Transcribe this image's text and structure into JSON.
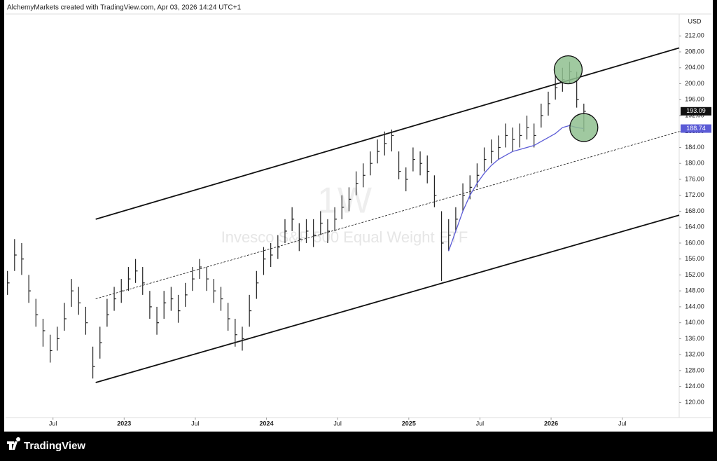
{
  "header": "AlchemyMarkets created with TradingView.com, Apr 03, 2026 14:24 UTC+1",
  "brand": "TradingView",
  "chart_data": {
    "type": "hlc",
    "title": "Invesco S&P 500 Equal Weight ETF",
    "interval": "1W",
    "currency": "USD",
    "color": "#222222",
    "x": [
      2022.18,
      2022.23,
      2022.28,
      2022.33,
      2022.38,
      2022.43,
      2022.48,
      2022.53,
      2022.58,
      2022.63,
      2022.68,
      2022.73,
      2022.78,
      2022.83,
      2022.88,
      2022.93,
      2022.98,
      2023.03,
      2023.08,
      2023.13,
      2023.18,
      2023.23,
      2023.28,
      2023.33,
      2023.38,
      2023.43,
      2023.48,
      2023.53,
      2023.58,
      2023.63,
      2023.68,
      2023.73,
      2023.78,
      2023.83,
      2023.88,
      2023.93,
      2023.98,
      2024.03,
      2024.08,
      2024.13,
      2024.18,
      2024.23,
      2024.28,
      2024.33,
      2024.38,
      2024.43,
      2024.48,
      2024.53,
      2024.58,
      2024.63,
      2024.68,
      2024.73,
      2024.78,
      2024.83,
      2024.88,
      2024.93,
      2024.98,
      2025.03,
      2025.08,
      2025.13,
      2025.18,
      2025.23,
      2025.28,
      2025.33,
      2025.38,
      2025.43,
      2025.48,
      2025.53,
      2025.58,
      2025.63,
      2025.68,
      2025.73,
      2025.78,
      2025.83,
      2025.88,
      2025.93,
      2025.98,
      2026.03,
      2026.08,
      2026.13,
      2026.18,
      2026.23
    ],
    "high": [
      153,
      161,
      160,
      152,
      146,
      141,
      137,
      139,
      145,
      151,
      149,
      144,
      134,
      139,
      146,
      149,
      151,
      154,
      156,
      154,
      148,
      144,
      148,
      149,
      147,
      150,
      154,
      156,
      154,
      151,
      149,
      145,
      141,
      139,
      147,
      153,
      159,
      160,
      162,
      166,
      169,
      165,
      166,
      166,
      168,
      166,
      169,
      172,
      174,
      178,
      180,
      183,
      186,
      188,
      188.5,
      183,
      179,
      184,
      183,
      182,
      177,
      168,
      166,
      169,
      175,
      177,
      180,
      184,
      186,
      187,
      190,
      189,
      190,
      192,
      190,
      195,
      198,
      202,
      204,
      205.5,
      203,
      195
    ],
    "low": [
      147,
      153,
      152,
      145,
      139,
      134,
      130,
      133,
      138,
      144,
      142,
      137,
      126,
      131,
      139,
      143,
      145,
      148,
      150,
      147,
      141,
      137,
      141,
      143,
      140,
      144,
      148,
      151,
      148,
      145,
      143,
      138,
      134,
      133,
      139,
      146,
      152,
      154,
      156,
      160,
      163,
      158,
      160,
      159,
      162,
      160,
      163,
      166,
      168,
      172,
      174,
      177,
      180,
      182,
      183,
      176,
      173,
      178,
      177,
      175,
      169,
      150.5,
      158,
      163,
      168,
      171,
      174,
      178,
      180,
      181,
      184,
      183,
      184,
      186,
      184,
      189,
      192,
      196,
      198,
      200,
      194,
      188
    ],
    "close": [
      150,
      157,
      156,
      148,
      142,
      138,
      133,
      136,
      141,
      148,
      145,
      140,
      129,
      135,
      142,
      146,
      148,
      151,
      153,
      150,
      144,
      140,
      145,
      146,
      143,
      147,
      151,
      154,
      151,
      148,
      146,
      141,
      137,
      136,
      143,
      150,
      156,
      157,
      159,
      163,
      166,
      161,
      163,
      162,
      165,
      163,
      166,
      169,
      171,
      175,
      177,
      180,
      183,
      185,
      187,
      178,
      176,
      181,
      180,
      178,
      172,
      160,
      162,
      166,
      172,
      174,
      177,
      181,
      183,
      184,
      187,
      186,
      187,
      189,
      187,
      192,
      195,
      199,
      201,
      203,
      196,
      193.09
    ],
    "ma": {
      "color": "#5b5bd6",
      "x": [
        2025.28,
        2025.33,
        2025.38,
        2025.43,
        2025.48,
        2025.53,
        2025.58,
        2025.63,
        2025.68,
        2025.73,
        2025.78,
        2025.83,
        2025.88,
        2025.93,
        2025.98,
        2026.03,
        2026.08,
        2026.13,
        2026.18,
        2026.23
      ],
      "values": [
        158,
        163,
        168,
        172,
        175,
        177.5,
        179.5,
        181,
        182,
        183,
        183.5,
        184,
        184.5,
        185.5,
        186.5,
        187.5,
        189,
        189.5,
        189,
        188.74
      ]
    },
    "channel": [
      {
        "x": [
          2022.8,
          2026.9
        ],
        "y": [
          166,
          209
        ],
        "style": "solid"
      },
      {
        "x": [
          2022.8,
          2026.9
        ],
        "y": [
          125,
          167
        ],
        "style": "solid"
      },
      {
        "x": [
          2022.8,
          2026.9
        ],
        "y": [
          146,
          188
        ],
        "style": "dashed"
      }
    ],
    "circles": [
      {
        "x": 2026.12,
        "y": 203.5,
        "color": "#8fc08f"
      },
      {
        "x": 2026.23,
        "y": 189,
        "color": "#8fc08f"
      }
    ],
    "xlim": [
      2022.167,
      2026.9
    ],
    "xticks": [
      {
        "value": 2022.5,
        "label": "Jul"
      },
      2023,
      {
        "value": 2023.5,
        "label": "Jul"
      },
      2024,
      {
        "value": 2024.5,
        "label": "Jul"
      },
      2025,
      {
        "value": 2025.5,
        "label": "Jul"
      },
      2026,
      {
        "value": 2026.5,
        "label": "Jul"
      }
    ],
    "ylim": [
      116.2,
      217.5
    ],
    "yticks": [
      {
        "value": 120,
        "label": "120.00"
      },
      {
        "value": 124,
        "label": "124.00"
      },
      {
        "value": 128,
        "label": "128.00"
      },
      {
        "value": 132,
        "label": "132.00"
      },
      {
        "value": 136,
        "label": "136.00"
      },
      {
        "value": 140,
        "label": "140.00"
      },
      {
        "value": 144,
        "label": "144.00"
      },
      {
        "value": 148,
        "label": "148.00"
      },
      {
        "value": 152,
        "label": "152.00"
      },
      {
        "value": 156,
        "label": "156.00"
      },
      {
        "value": 160,
        "label": "160.00"
      },
      {
        "value": 164,
        "label": "164.00"
      },
      {
        "value": 168,
        "label": "168.00"
      },
      {
        "value": 172,
        "label": "172.00"
      },
      {
        "value": 176,
        "label": "176.00"
      },
      {
        "value": 180,
        "label": "180.00"
      },
      {
        "value": 184,
        "label": "184.00"
      },
      {
        "value": 188,
        "label": "188.00"
      },
      {
        "value": 192,
        "label": "192.00"
      },
      {
        "value": 196,
        "label": "196.00"
      },
      {
        "value": 200,
        "label": "200.00"
      },
      {
        "value": 204,
        "label": "204.00"
      },
      {
        "value": 208,
        "label": "208.00"
      },
      {
        "value": 212,
        "label": "212.00"
      }
    ]
  }
}
